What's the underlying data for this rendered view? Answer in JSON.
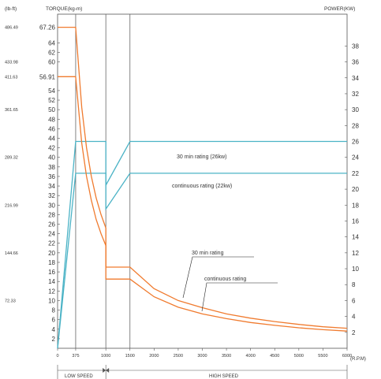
{
  "chart_data": {
    "type": "line",
    "title": "",
    "headers": {
      "left_outer_unit": "(lb-ft)",
      "left_unit": "TORQUE(kg-m)",
      "right_unit": "POWER(KW)",
      "x_unit": "(R.P.M)"
    },
    "x_ticks": [
      "0",
      "375",
      "1000",
      "1500",
      "2000",
      "2500",
      "3000",
      "3500",
      "4000",
      "4500",
      "5000",
      "5500",
      "6000"
    ],
    "torque_ticks": [
      "2",
      "4",
      "6",
      "8",
      "10",
      "12",
      "14",
      "16",
      "18",
      "20",
      "22",
      "24",
      "26",
      "28",
      "30",
      "32",
      "34",
      "36",
      "38",
      "40",
      "42",
      "44",
      "46",
      "48",
      "50",
      "52",
      "54",
      "56.91",
      "60",
      "62",
      "64",
      "67.26"
    ],
    "lbft_ticks": [
      "72.33",
      "144.66",
      "216.99",
      "289.32",
      "361.65",
      "411.63",
      "433.98",
      "486.49"
    ],
    "power_ticks": [
      "2",
      "4",
      "6",
      "8",
      "10",
      "12",
      "14",
      "16",
      "18",
      "20",
      "22",
      "24",
      "26",
      "28",
      "30",
      "32",
      "34",
      "36",
      "38"
    ],
    "xlim": [
      0,
      6000
    ],
    "torque_ylim": [
      0,
      70
    ],
    "power_ylim": [
      0,
      42
    ],
    "speed_ranges": {
      "low": "LOW SPEED",
      "high": "HIGH SPEED"
    },
    "annotations": {
      "power_30min": "30 min rating (26kw)",
      "power_cont": "continuous rating (22kw)",
      "torque_30min": "30 min rating",
      "torque_cont": "continuous rating"
    },
    "series": [
      {
        "name": "30 min rating (26kw)",
        "axis": "power",
        "x": [
          0,
          375,
          1000,
          1000,
          1500,
          6000
        ],
        "y": [
          0,
          26,
          26,
          20.5,
          26,
          26
        ]
      },
      {
        "name": "continuous rating (22kw)",
        "axis": "power",
        "x": [
          0,
          375,
          1000,
          1000,
          1500,
          6000
        ],
        "y": [
          0,
          22,
          22,
          17.5,
          22,
          22
        ]
      },
      {
        "name": "30 min rating",
        "axis": "torque",
        "x": [
          0,
          375,
          500,
          600,
          700,
          800,
          900,
          1000,
          1000,
          1500,
          2000,
          2500,
          3000,
          3500,
          4000,
          4500,
          5000,
          5500,
          6000
        ],
        "y": [
          67.26,
          67.26,
          50.5,
          42,
          36,
          31.5,
          28,
          25.2,
          17,
          17,
          12.5,
          10,
          8.5,
          7.2,
          6.3,
          5.6,
          5,
          4.5,
          4.2
        ]
      },
      {
        "name": "continuous rating",
        "axis": "torque",
        "x": [
          0,
          375,
          500,
          600,
          700,
          800,
          900,
          1000,
          1000,
          1500,
          2000,
          2500,
          3000,
          3500,
          4000,
          4500,
          5000,
          5500,
          6000
        ],
        "y": [
          56.91,
          56.91,
          43,
          36,
          31,
          27,
          24,
          21.5,
          14.5,
          14.5,
          10.8,
          8.6,
          7.2,
          6.2,
          5.4,
          4.8,
          4.3,
          3.9,
          3.6
        ]
      }
    ],
    "colors": {
      "power": "#4bb3c6",
      "torque": "#f07b2f",
      "axis": "#555555",
      "grid": "#666666"
    }
  }
}
